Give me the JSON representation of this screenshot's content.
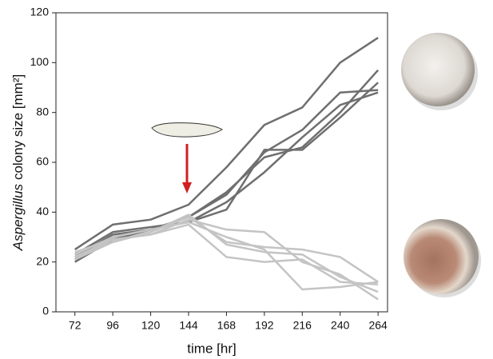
{
  "chart_data": {
    "type": "line",
    "xlabel": "time [hr]",
    "ylabel": {
      "italic": "Aspergillus",
      "rest": "colony size [mm²]"
    },
    "x": [
      72,
      96,
      120,
      144,
      168,
      192,
      216,
      240,
      264
    ],
    "xlim": [
      60,
      270
    ],
    "xticks": [
      72,
      96,
      120,
      144,
      168,
      192,
      216,
      240,
      264
    ],
    "ylim": [
      0,
      120
    ],
    "yticks": [
      0,
      20,
      40,
      60,
      80,
      100,
      120
    ],
    "grid": false,
    "series": [
      {
        "color": "#6f6f6f",
        "values": [
          25,
          35,
          37,
          43,
          58,
          75,
          82,
          100,
          110
        ]
      },
      {
        "color": "#6f6f6f",
        "values": [
          22,
          31,
          33,
          38,
          47,
          64,
          73,
          88,
          89
        ]
      },
      {
        "color": "#6f6f6f",
        "values": [
          21,
          30,
          33,
          38,
          48,
          62,
          66,
          80,
          97
        ]
      },
      {
        "color": "#6f6f6f",
        "values": [
          20,
          29,
          33,
          36,
          41,
          65,
          65,
          78,
          92
        ]
      },
      {
        "color": "#6f6f6f",
        "values": [
          23,
          32,
          34,
          36,
          44,
          56,
          70,
          83,
          88
        ]
      },
      {
        "color": "#c4c4c4",
        "values": [
          24,
          29,
          31,
          37,
          33,
          32,
          20,
          15,
          5
        ]
      },
      {
        "color": "#c4c4c4",
        "values": [
          22,
          28,
          32,
          38,
          28,
          26,
          25,
          22,
          12
        ]
      },
      {
        "color": "#c4c4c4",
        "values": [
          22,
          29,
          31,
          35,
          22,
          20,
          21,
          12,
          11
        ]
      },
      {
        "color": "#c4c4c4",
        "values": [
          23,
          30,
          33,
          36,
          30,
          25,
          9,
          10,
          12
        ]
      },
      {
        "color": "#c4c4c4",
        "values": [
          21,
          28,
          32,
          39,
          27,
          24,
          23,
          14,
          8
        ]
      }
    ]
  }
}
